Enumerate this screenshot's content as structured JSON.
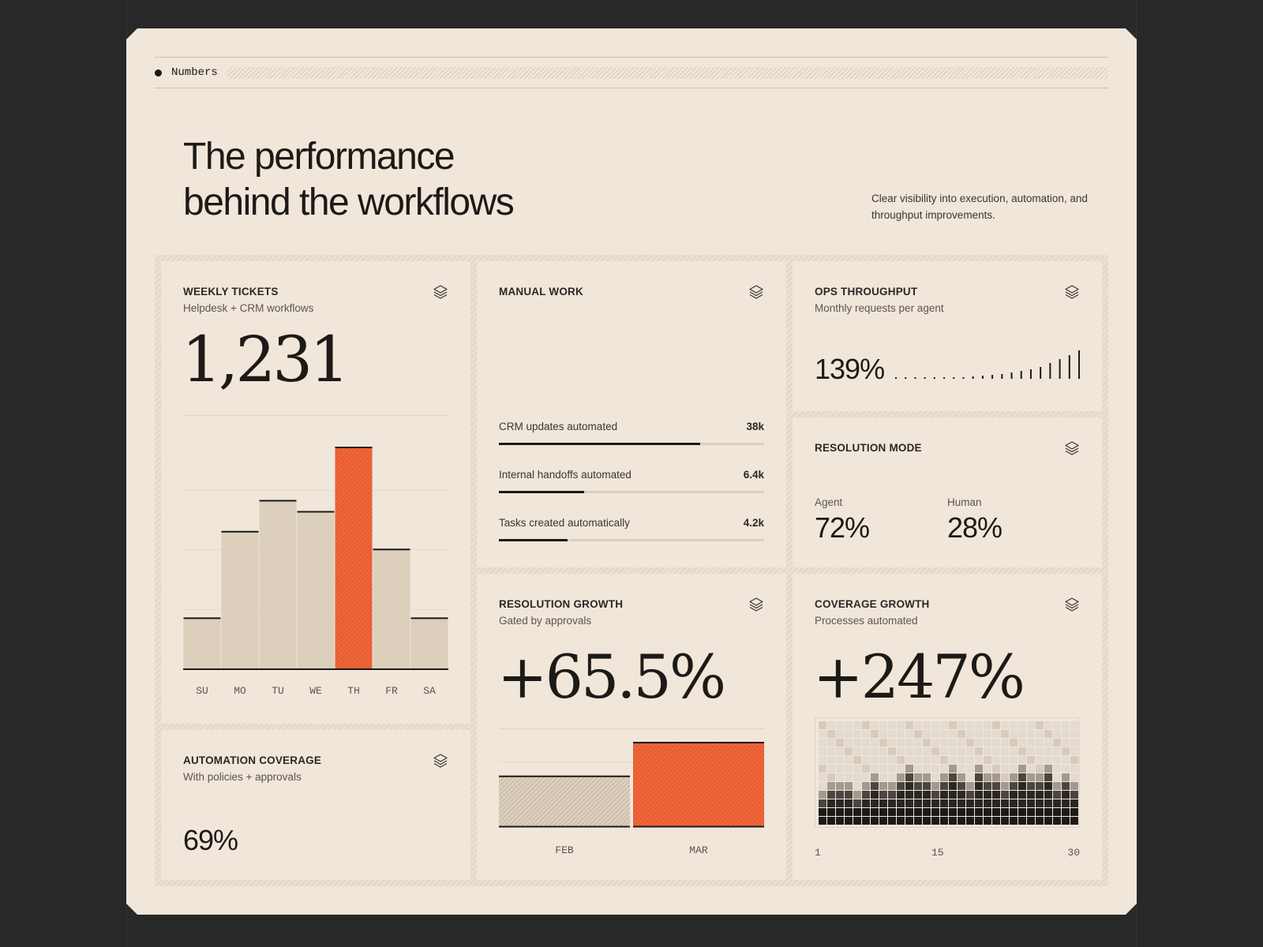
{
  "section": {
    "label": "Numbers"
  },
  "hero": {
    "title_line1": "The performance",
    "title_line2": "behind the workflows",
    "description": "Clear visibility into execution, automation, and throughput improvements."
  },
  "colors": {
    "background": "#282828",
    "panel": "#f0e6da",
    "accent": "#f0653a",
    "ink": "#1c1a17",
    "bar": "#dccfbb"
  },
  "weekly_tickets": {
    "title": "WEEKLY TICKETS",
    "subtitle": "Helpdesk + CRM workflows",
    "value": "1,231",
    "icon": "layers-icon",
    "chart_data": {
      "type": "bar",
      "categories": [
        "SU",
        "MO",
        "TU",
        "WE",
        "TH",
        "FR",
        "SA"
      ],
      "values": [
        23,
        62,
        76,
        71,
        100,
        54,
        23
      ],
      "highlight": "TH",
      "ylim": [
        0,
        100
      ],
      "grid": true
    }
  },
  "manual_work": {
    "title": "MANUAL WORK",
    "icon": "layers-icon",
    "rows": [
      {
        "label": "CRM updates automated",
        "value": "38k",
        "progress": 0.76
      },
      {
        "label": "Internal handoffs automated",
        "value": "6.4k",
        "progress": 0.32
      },
      {
        "label": "Tasks created automatically",
        "value": "4.2k",
        "progress": 0.26
      }
    ]
  },
  "ops_throughput": {
    "title": "OPS THROUGHPUT",
    "subtitle": "Monthly requests per agent",
    "value": "139%",
    "icon": "layers-icon",
    "spark": [
      1,
      1,
      1,
      1,
      1,
      1,
      2,
      2,
      3,
      4,
      5,
      6,
      8,
      10,
      12,
      15,
      20,
      25,
      30,
      36
    ]
  },
  "resolution_mode": {
    "title": "RESOLUTION MODE",
    "icon": "layers-icon",
    "agent_label": "Agent",
    "agent_value": "72%",
    "human_label": "Human",
    "human_value": "28%"
  },
  "automation_coverage": {
    "title": "AUTOMATION COVERAGE",
    "subtitle": "With policies + approvals",
    "value": "69%",
    "icon": "layers-icon"
  },
  "resolution_growth": {
    "title": "RESOLUTION GROWTH",
    "subtitle": "Gated by approvals",
    "value": "+65.5%",
    "icon": "layers-icon",
    "chart_data": {
      "type": "bar",
      "categories": [
        "FEB",
        "MAR"
      ],
      "values": [
        60.4,
        100
      ],
      "ylim": [
        0,
        100
      ]
    }
  },
  "coverage_growth": {
    "title": "COVERAGE GROWTH",
    "subtitle": "Processes automated",
    "value": "+247%",
    "icon": "layers-icon",
    "axis_start": "1",
    "axis_mid": "15",
    "axis_end": "30",
    "chart_data": {
      "type": "heatmap",
      "columns": 30,
      "rows": 12,
      "x_ticks": [
        "1",
        "15",
        "30"
      ],
      "column_levels": [
        3,
        4,
        4,
        4,
        3,
        4,
        5,
        4,
        4,
        5,
        6,
        5,
        5,
        4,
        5,
        6,
        5,
        4,
        6,
        5,
        5,
        4,
        5,
        6,
        5,
        5,
        6,
        4,
        5,
        4
      ]
    }
  }
}
